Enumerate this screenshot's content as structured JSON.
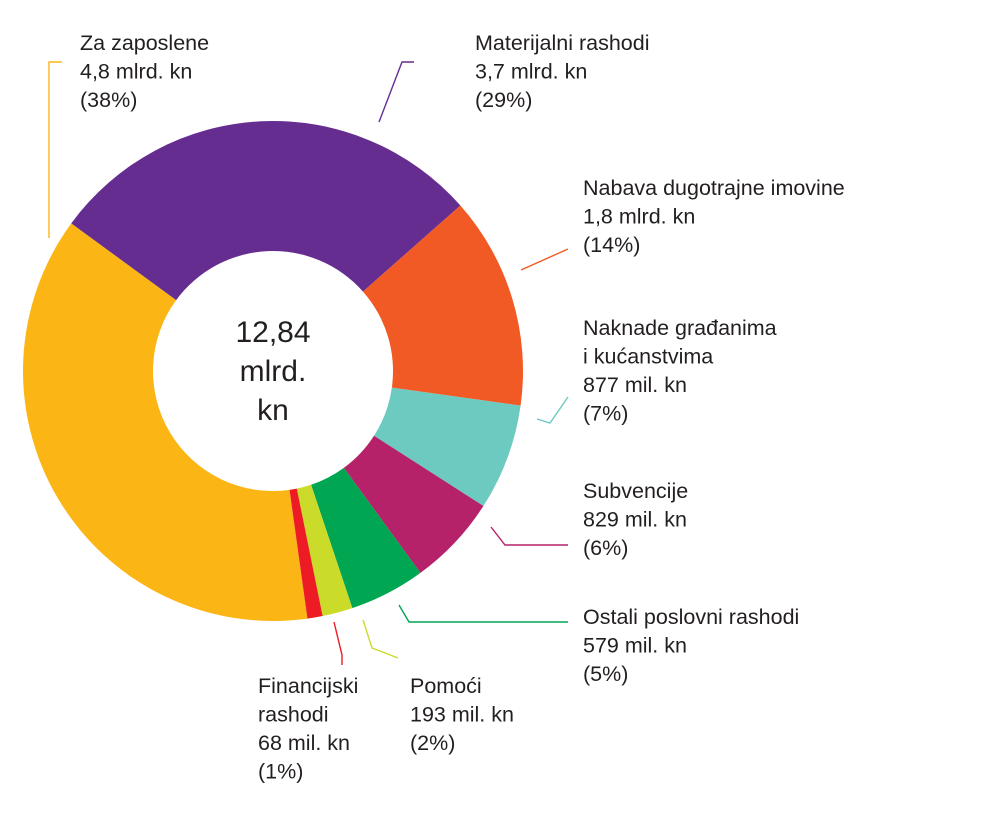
{
  "chart_data": {
    "type": "pie",
    "variant": "donut",
    "center_label": [
      "12,84",
      "mlrd.",
      "kn"
    ],
    "slices": [
      {
        "name": "Za zaposlene",
        "amount": "4,8 mlrd. kn",
        "percent": "(38%)",
        "value": 38,
        "color": "#fbb616"
      },
      {
        "name": "Materijalni rashodi",
        "amount": "3,7 mlrd. kn",
        "percent": "(29%)",
        "value": 29,
        "color": "#662d91"
      },
      {
        "name": "Nabava dugotrajne imovine",
        "amount": "1,8 mlrd. kn",
        "percent": "(14%)",
        "value": 14,
        "color": "#f15a24"
      },
      {
        "name": [
          "Naknade građanima",
          "i kućanstvima"
        ],
        "amount": "877 mil. kn",
        "percent": "(7%)",
        "value": 7,
        "color": "#6ccac0"
      },
      {
        "name": "Subvencije",
        "amount": "829 mil. kn",
        "percent": "(6%)",
        "value": 6,
        "color": "#b52269"
      },
      {
        "name": "Ostali poslovni rashodi",
        "amount": "579 mil. kn",
        "percent": "(5%)",
        "value": 5,
        "color": "#00a651"
      },
      {
        "name": "Pomoći",
        "amount": "193 mil. kn",
        "percent": "(2%)",
        "value": 2,
        "color": "#cbdb2a"
      },
      {
        "name": [
          "Financijski",
          "rashodi"
        ],
        "amount": "68 mil. kn",
        "percent": "(1%)",
        "value": 1,
        "color": "#ed1c24"
      }
    ]
  }
}
